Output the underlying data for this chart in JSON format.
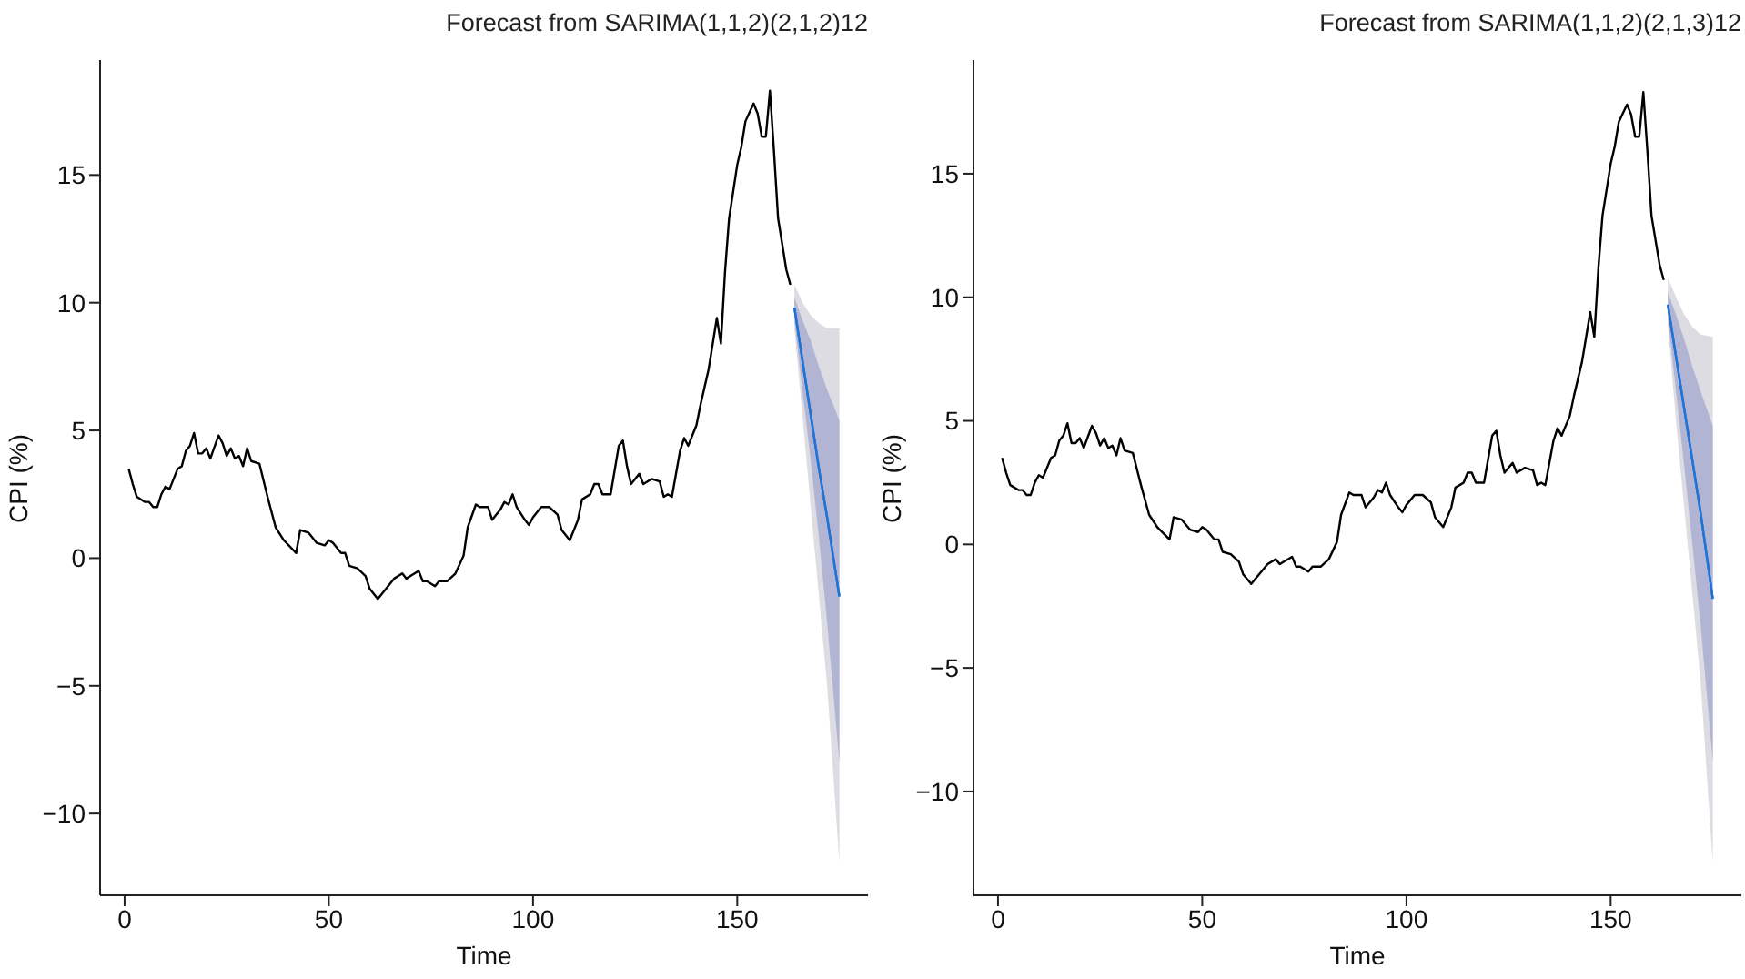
{
  "chart_data": [
    {
      "type": "line",
      "title": "Forecast from SARIMA(1,1,2)(2,1,2)12",
      "xlabel": "Time",
      "ylabel": "CPI (%)",
      "xlim": [
        -6,
        182
      ],
      "ylim": [
        -13.2,
        19.5
      ],
      "xticks": [
        0,
        50,
        100,
        150
      ],
      "yticks": [
        -10,
        -5,
        0,
        5,
        10,
        15
      ],
      "grid": false,
      "legend": false,
      "series": [
        {
          "color": "#000000",
          "x": [
            1,
            2,
            3,
            5,
            6,
            7,
            8,
            9,
            10,
            11,
            13,
            14,
            15,
            16,
            17,
            18,
            19,
            20,
            21,
            23,
            24,
            25,
            26,
            27,
            28,
            29,
            30,
            31,
            33,
            35,
            37,
            39,
            42,
            43,
            45,
            47,
            49,
            50,
            51,
            53,
            54,
            55,
            57,
            59,
            60,
            62,
            63,
            65,
            66,
            68,
            69,
            70,
            72,
            73,
            74,
            76,
            77,
            79,
            81,
            83,
            84,
            86,
            87,
            89,
            90,
            92,
            93,
            94,
            95,
            96,
            98,
            99,
            100,
            102,
            104,
            106,
            107,
            109,
            111,
            112,
            114,
            115,
            116,
            117,
            119,
            121,
            122,
            123,
            124,
            126,
            127,
            129,
            131,
            132,
            133,
            134,
            136,
            137,
            138,
            140,
            141,
            143,
            145,
            146,
            147,
            148,
            150,
            151,
            152,
            154,
            155,
            156,
            157,
            158,
            159,
            160,
            162,
            163
          ],
          "values": [
            3.5,
            2.9,
            2.4,
            2.2,
            2.2,
            2.0,
            2.0,
            2.5,
            2.8,
            2.7,
            3.5,
            3.6,
            4.2,
            4.4,
            4.9,
            4.1,
            4.1,
            4.3,
            3.9,
            4.8,
            4.5,
            4.0,
            4.3,
            3.9,
            4.0,
            3.6,
            4.3,
            3.8,
            3.7,
            2.4,
            1.2,
            0.7,
            0.2,
            1.1,
            1.0,
            0.6,
            0.5,
            0.7,
            0.6,
            0.2,
            0.2,
            -0.3,
            -0.4,
            -0.7,
            -1.2,
            -1.6,
            -1.4,
            -1.0,
            -0.8,
            -0.6,
            -0.8,
            -0.7,
            -0.5,
            -0.9,
            -0.9,
            -1.1,
            -0.9,
            -0.9,
            -0.6,
            0.1,
            1.2,
            2.1,
            2.0,
            2.0,
            1.5,
            1.9,
            2.2,
            2.1,
            2.5,
            2.0,
            1.5,
            1.3,
            1.6,
            2.0,
            2.0,
            1.7,
            1.1,
            0.7,
            1.5,
            2.3,
            2.5,
            2.9,
            2.9,
            2.5,
            2.5,
            4.4,
            4.6,
            3.6,
            2.9,
            3.3,
            2.9,
            3.1,
            3.0,
            2.4,
            2.5,
            2.4,
            4.2,
            4.7,
            4.4,
            5.2,
            6.0,
            7.4,
            9.4,
            8.4,
            11.2,
            13.3,
            15.4,
            16.1,
            17.1,
            17.8,
            17.4,
            16.5,
            16.5,
            18.3,
            15.9,
            13.3,
            11.3,
            10.7
          ]
        },
        {
          "color": "#1f73d6",
          "x": [
            164,
            166,
            168,
            170,
            172,
            175
          ],
          "values": [
            9.8,
            7.7,
            5.6,
            3.5,
            1.6,
            -1.5
          ],
          "lower": [
            9.0,
            5.5,
            2.0,
            -1.5,
            -5.0,
            -11.9
          ],
          "upper": [
            10.7,
            10.0,
            9.5,
            9.2,
            9.0,
            9.0
          ]
        },
        {
          "color": "#1f73d6",
          "x": [
            164,
            166,
            168,
            170,
            172,
            175
          ],
          "values": [
            9.8,
            7.7,
            5.6,
            3.5,
            1.6,
            -1.5
          ],
          "lower": [
            9.3,
            6.5,
            3.8,
            0.8,
            -2.5,
            -8.0
          ],
          "upper": [
            10.2,
            9.3,
            8.5,
            7.5,
            6.6,
            5.4
          ]
        }
      ]
    },
    {
      "type": "line",
      "title": "Forecast from SARIMA(1,1,2)(2,1,3)12",
      "xlabel": "Time",
      "ylabel": "CPI (%)",
      "xlim": [
        -6,
        182
      ],
      "ylim": [
        -14.2,
        19.6
      ],
      "xticks": [
        0,
        50,
        100,
        150
      ],
      "yticks": [
        -10,
        -5,
        0,
        5,
        10,
        15
      ],
      "grid": false,
      "legend": false,
      "series": [
        {
          "color": "#000000",
          "x": [
            1,
            2,
            3,
            5,
            6,
            7,
            8,
            9,
            10,
            11,
            13,
            14,
            15,
            16,
            17,
            18,
            19,
            20,
            21,
            23,
            24,
            25,
            26,
            27,
            28,
            29,
            30,
            31,
            33,
            35,
            37,
            39,
            42,
            43,
            45,
            47,
            49,
            50,
            51,
            53,
            54,
            55,
            57,
            59,
            60,
            62,
            63,
            65,
            66,
            68,
            69,
            70,
            72,
            73,
            74,
            76,
            77,
            79,
            81,
            83,
            84,
            86,
            87,
            89,
            90,
            92,
            93,
            94,
            95,
            96,
            98,
            99,
            100,
            102,
            104,
            106,
            107,
            109,
            111,
            112,
            114,
            115,
            116,
            117,
            119,
            121,
            122,
            123,
            124,
            126,
            127,
            129,
            131,
            132,
            133,
            134,
            136,
            137,
            138,
            140,
            141,
            143,
            145,
            146,
            147,
            148,
            150,
            151,
            152,
            154,
            155,
            156,
            157,
            158,
            159,
            160,
            162,
            163
          ],
          "values": [
            3.5,
            2.9,
            2.4,
            2.2,
            2.2,
            2.0,
            2.0,
            2.5,
            2.8,
            2.7,
            3.5,
            3.6,
            4.2,
            4.4,
            4.9,
            4.1,
            4.1,
            4.3,
            3.9,
            4.8,
            4.5,
            4.0,
            4.3,
            3.9,
            4.0,
            3.6,
            4.3,
            3.8,
            3.7,
            2.4,
            1.2,
            0.7,
            0.2,
            1.1,
            1.0,
            0.6,
            0.5,
            0.7,
            0.6,
            0.2,
            0.2,
            -0.3,
            -0.4,
            -0.7,
            -1.2,
            -1.6,
            -1.4,
            -1.0,
            -0.8,
            -0.6,
            -0.8,
            -0.7,
            -0.5,
            -0.9,
            -0.9,
            -1.1,
            -0.9,
            -0.9,
            -0.6,
            0.1,
            1.2,
            2.1,
            2.0,
            2.0,
            1.5,
            1.9,
            2.2,
            2.1,
            2.5,
            2.0,
            1.5,
            1.3,
            1.6,
            2.0,
            2.0,
            1.7,
            1.1,
            0.7,
            1.5,
            2.3,
            2.5,
            2.9,
            2.9,
            2.5,
            2.5,
            4.4,
            4.6,
            3.6,
            2.9,
            3.3,
            2.9,
            3.1,
            3.0,
            2.4,
            2.5,
            2.4,
            4.2,
            4.7,
            4.4,
            5.2,
            6.0,
            7.4,
            9.4,
            8.4,
            11.2,
            13.3,
            15.4,
            16.1,
            17.1,
            17.8,
            17.4,
            16.5,
            16.5,
            18.3,
            15.9,
            13.3,
            11.3,
            10.7
          ]
        },
        {
          "color": "#1f73d6",
          "x": [
            164,
            166,
            168,
            170,
            172,
            175
          ],
          "values": [
            9.7,
            7.6,
            5.5,
            3.4,
            1.3,
            -2.2
          ],
          "lower": [
            8.9,
            5.0,
            1.5,
            -2.0,
            -5.5,
            -12.9
          ],
          "upper": [
            10.8,
            10.0,
            9.3,
            8.8,
            8.5,
            8.4
          ]
        },
        {
          "color": "#1f73d6",
          "x": [
            164,
            166,
            168,
            170,
            172,
            175
          ],
          "values": [
            9.7,
            7.6,
            5.5,
            3.4,
            1.3,
            -2.2
          ],
          "lower": [
            9.2,
            6.2,
            3.2,
            0.0,
            -3.2,
            -8.8
          ],
          "upper": [
            10.2,
            9.3,
            8.3,
            7.2,
            6.2,
            4.8
          ]
        }
      ]
    }
  ]
}
